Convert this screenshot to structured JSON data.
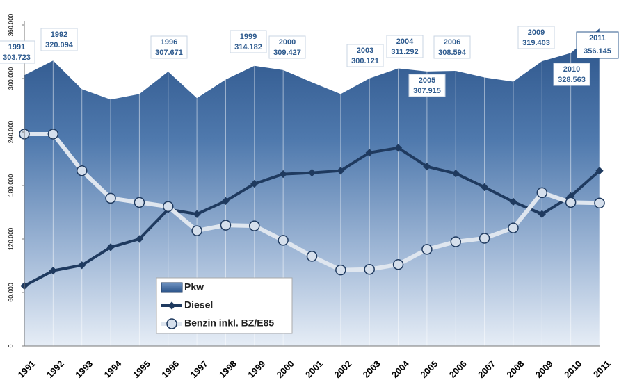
{
  "chart_data": {
    "type": "line",
    "categories": [
      "1991",
      "1992",
      "1993",
      "1994",
      "1995",
      "1996",
      "1997",
      "1998",
      "1999",
      "2000",
      "2001",
      "2002",
      "2003",
      "2004",
      "2005",
      "2006",
      "2007",
      "2008",
      "2009",
      "2010",
      "2011"
    ],
    "series": [
      {
        "name": "Pkw",
        "color": "#2d5a8e",
        "style": "area",
        "values": [
          303723,
          320094,
          288000,
          276400,
          282600,
          307671,
          278000,
          298800,
          314182,
          309427,
          295700,
          282600,
          300121,
          311292,
          307915,
          308594,
          301200,
          296500,
          319403,
          328563,
          356145
        ],
        "value_labels": [
          "303.723",
          "320.094",
          null,
          null,
          null,
          "307.671",
          null,
          null,
          "314.182",
          "309.427",
          null,
          null,
          "300.121",
          "311.292",
          "307.915",
          "308.594",
          null,
          null,
          "319.403",
          "328.563",
          "356.145"
        ]
      },
      {
        "name": "Diesel",
        "color": "#1f3a5f",
        "style": "line",
        "values": [
          67400,
          84400,
          90600,
          110700,
          120000,
          153300,
          147900,
          162600,
          181900,
          192800,
          194300,
          196600,
          216800,
          222200,
          201300,
          193500,
          178100,
          161800,
          147900,
          168000,
          196600
        ]
      },
      {
        "name": "Benzin inkl. BZ/E85",
        "color": "#dfe6ef",
        "style": "line",
        "values": [
          237700,
          237700,
          196600,
          165700,
          161000,
          156400,
          129300,
          135500,
          134700,
          118500,
          100600,
          85200,
          85900,
          91400,
          108400,
          116900,
          120800,
          132400,
          171900,
          161000,
          160300
        ]
      }
    ],
    "ylim": [
      0,
      360000
    ],
    "yticks": [
      0,
      {
        "value": 60000,
        "label": "60.000"
      },
      {
        "value": 120000,
        "label": "120.000"
      },
      {
        "value": 180000,
        "label": "180.000"
      },
      {
        "value": 240000,
        "label": "240.000"
      },
      {
        "value": 300000,
        "label": "300.000"
      },
      {
        "value": 360000,
        "label": "360.000"
      }
    ]
  }
}
